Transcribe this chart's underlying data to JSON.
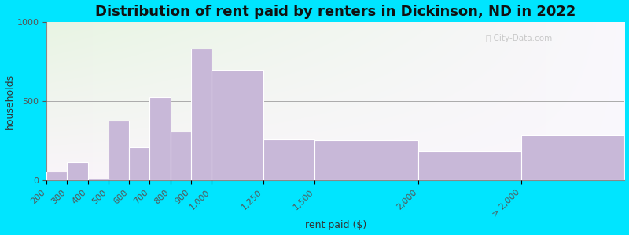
{
  "title": "Distribution of rent paid by renters in Dickinson, ND in 2022",
  "xlabel": "rent paid ($)",
  "ylabel": "households",
  "bar_left_edges": [
    200,
    300,
    400,
    500,
    600,
    700,
    800,
    900,
    1000,
    1250,
    1500,
    2000,
    2500
  ],
  "bar_widths": [
    100,
    100,
    100,
    100,
    100,
    100,
    100,
    100,
    250,
    250,
    500,
    500,
    500
  ],
  "values": [
    55,
    115,
    10,
    380,
    210,
    525,
    310,
    830,
    700,
    260,
    255,
    185,
    290
  ],
  "tick_positions": [
    200,
    300,
    400,
    500,
    600,
    700,
    800,
    900,
    1000,
    1250,
    1500,
    2000,
    2500
  ],
  "tick_labels": [
    "200",
    "300",
    "400",
    "500",
    "600",
    "700",
    "800",
    "900",
    "1,000",
    "1,250",
    "1,500",
    "2,000",
    "> 2,000"
  ],
  "bar_color": "#c8b8d8",
  "bar_edge_color": "#ffffff",
  "ylim": [
    0,
    1000
  ],
  "yticks": [
    0,
    500,
    1000
  ],
  "xlim": [
    200,
    3000
  ],
  "background_outer": "#00e5ff",
  "title_fontsize": 13,
  "axis_label_fontsize": 9,
  "tick_fontsize": 8
}
